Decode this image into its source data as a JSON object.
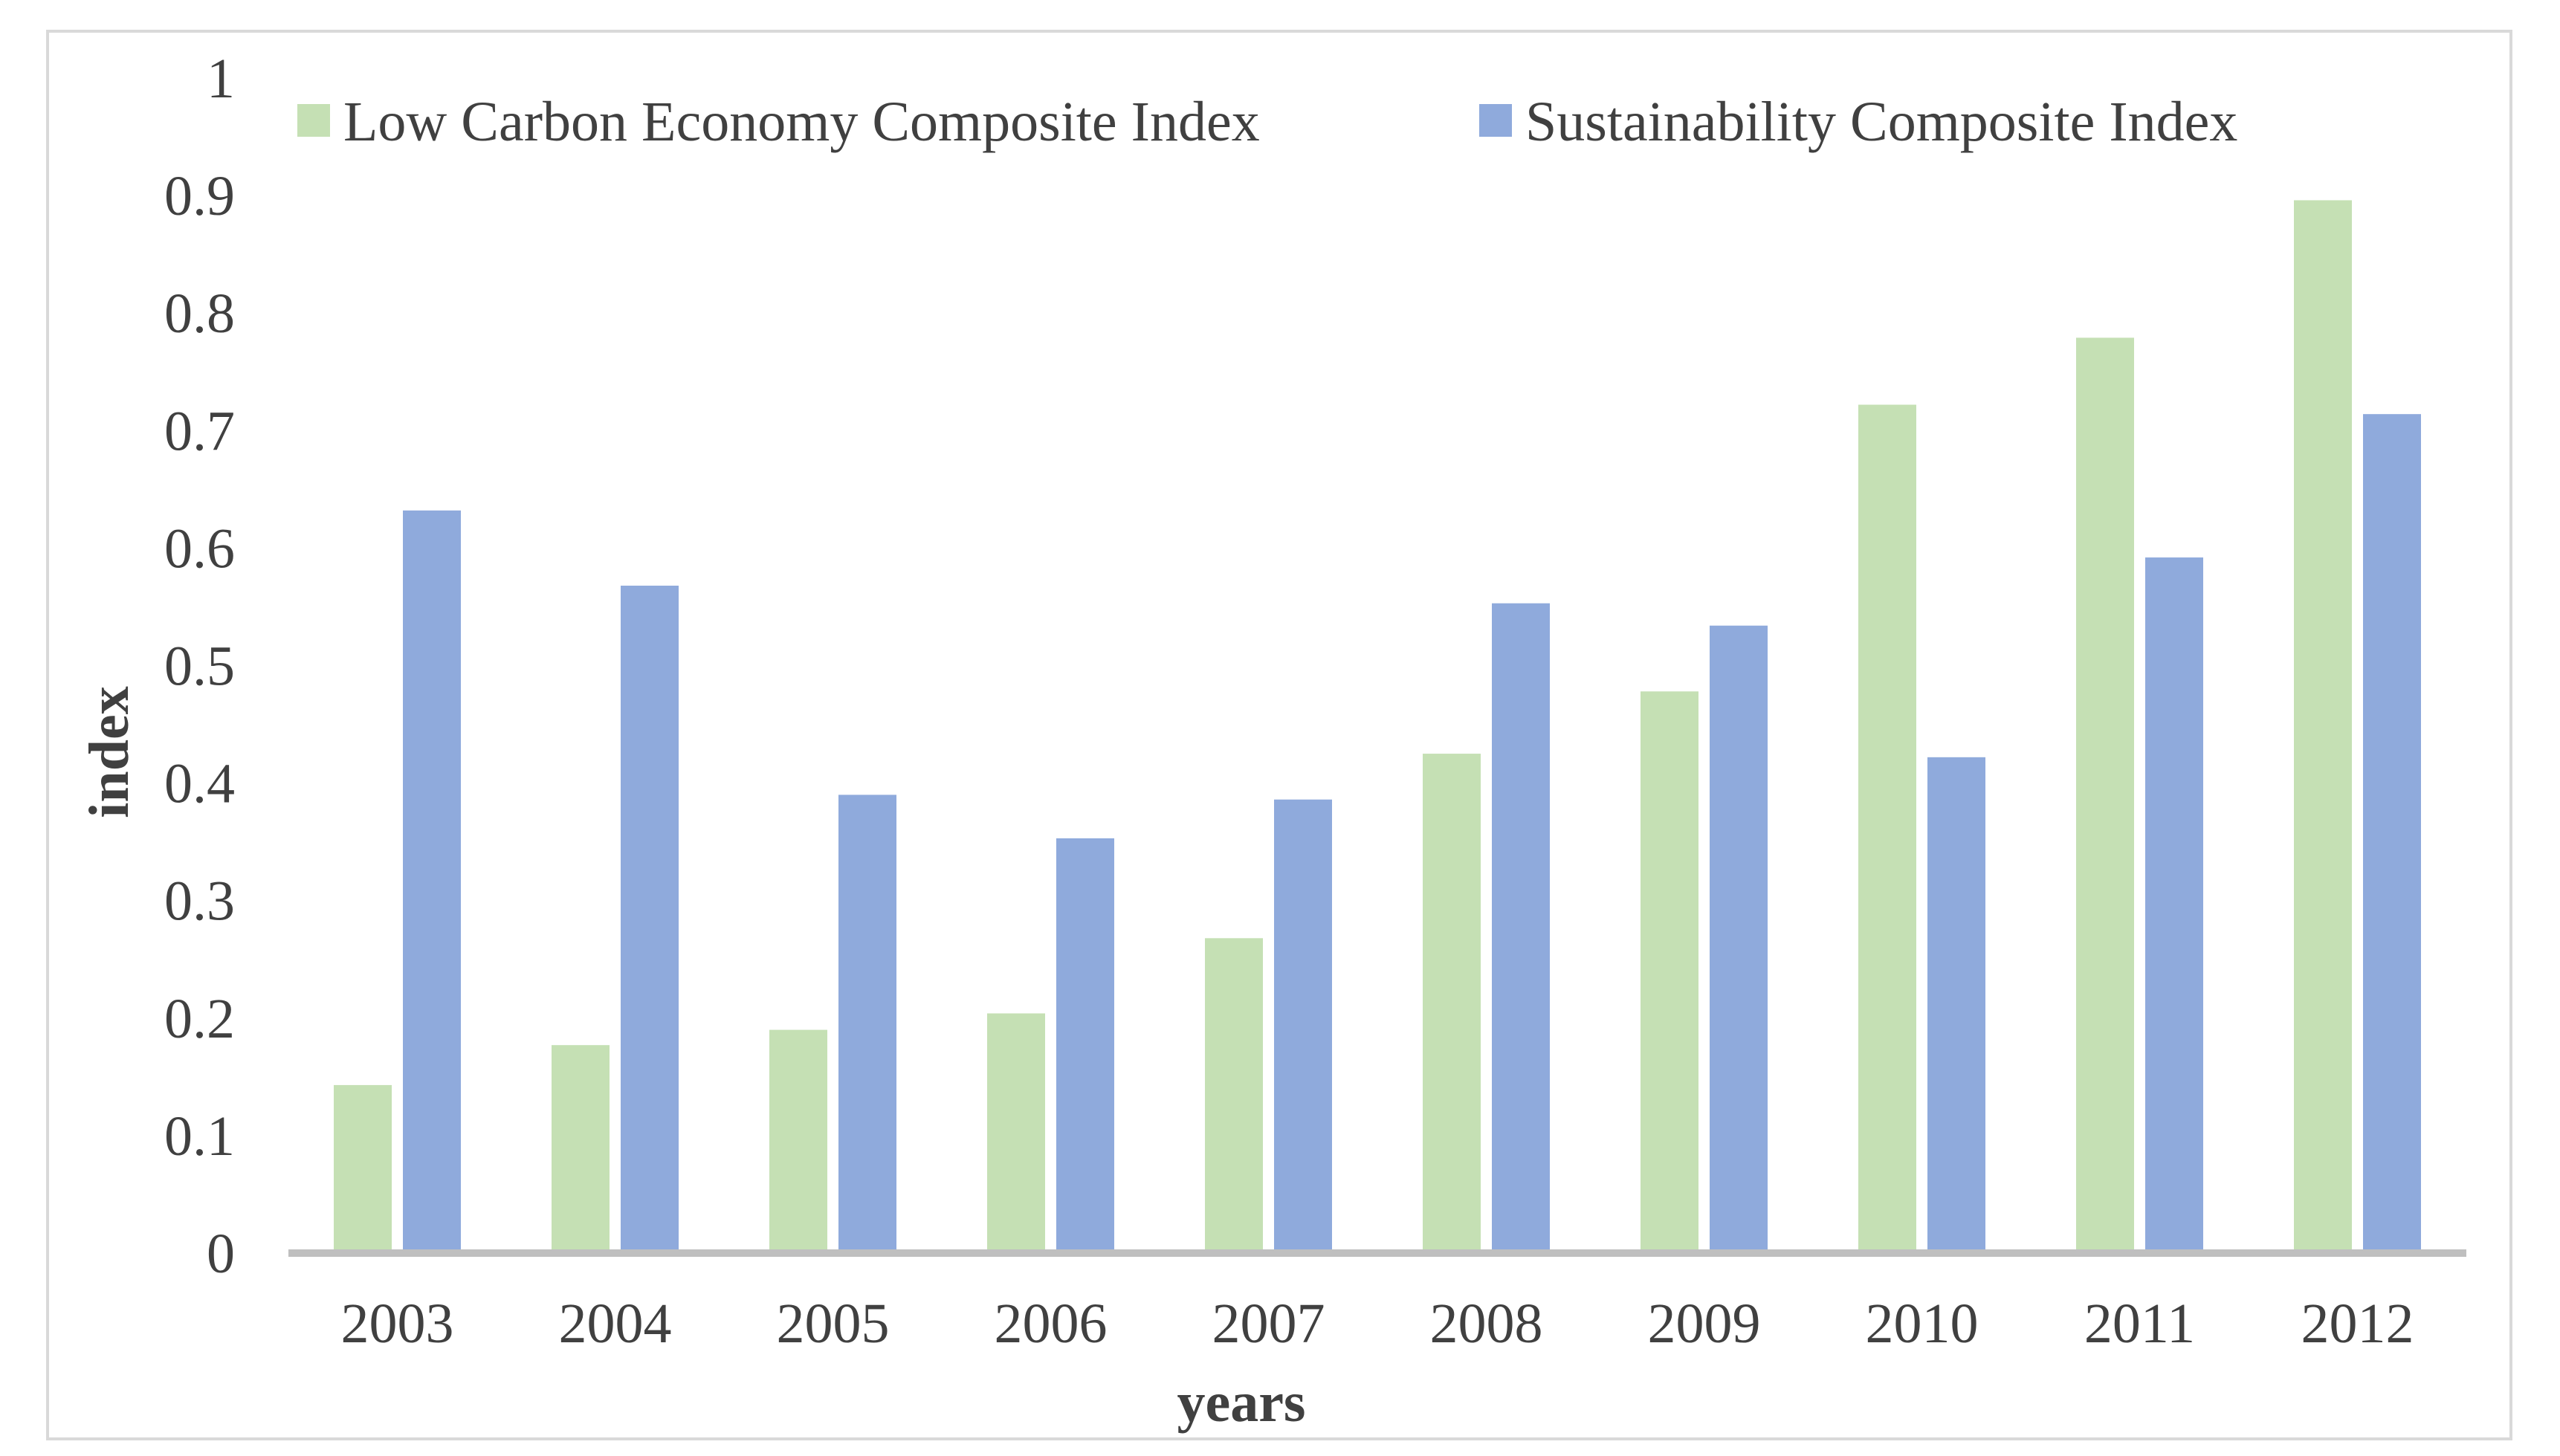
{
  "chart_data": {
    "type": "bar",
    "title": "",
    "xlabel": "years",
    "ylabel": "index",
    "ylim": [
      0,
      1
    ],
    "yticks": [
      "0",
      "0.1",
      "0.2",
      "0.3",
      "0.4",
      "0.5",
      "0.6",
      "0.7",
      "0.8",
      "0.9",
      "1"
    ],
    "grid": false,
    "legend_position": "top",
    "categories": [
      "2003",
      "2004",
      "2005",
      "2006",
      "2007",
      "2008",
      "2009",
      "2010",
      "2011",
      "2012"
    ],
    "series": [
      {
        "name": "Low Carbon Economy Composite Index",
        "color": "#c5e0b4",
        "values": [
          0.143,
          0.177,
          0.19,
          0.204,
          0.268,
          0.425,
          0.478,
          0.722,
          0.779,
          0.896
        ]
      },
      {
        "name": "Sustainability Composite Index",
        "color": "#8faadc",
        "values": [
          0.632,
          0.568,
          0.39,
          0.353,
          0.386,
          0.553,
          0.534,
          0.422,
          0.592,
          0.714
        ]
      }
    ],
    "axis_color": "#bfbfbf"
  }
}
